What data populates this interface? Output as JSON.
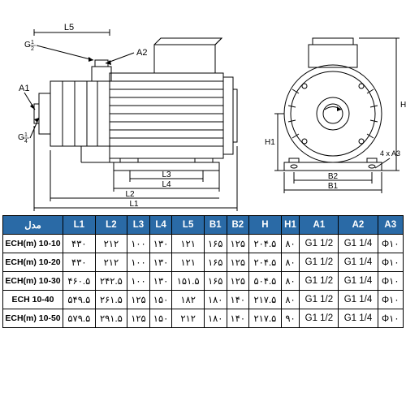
{
  "drawing": {
    "labels": {
      "L1": "L1",
      "L2": "L2",
      "L3": "L3",
      "L4": "L4",
      "L5": "L5",
      "B1": "B1",
      "B2": "B2",
      "H": "H",
      "H1": "H1",
      "A1": "A1",
      "A2": "A2",
      "A3note": "4 x A3",
      "G12": "G",
      "G12frac": "1/2",
      "G14": "G",
      "G14frac": "1/4"
    },
    "stroke": "#000000",
    "fill_none": "none",
    "bg": "#ffffff"
  },
  "table": {
    "header_bg": "#2a6aa6",
    "header_fg": "#ffffff",
    "columns": [
      "مدل",
      "L1",
      "L2",
      "L3",
      "L4",
      "L5",
      "B1",
      "B2",
      "H",
      "H1",
      "A1",
      "A2",
      "A3"
    ],
    "rows": [
      [
        "ECH(m) 10-10",
        "۴۳۰",
        "۲۱۲",
        "۱۰۰",
        "۱۳۰",
        "۱۲۱",
        "۱۶۵",
        "۱۲۵",
        "۲۰۴.۵",
        "۸۰",
        "G1 1/2",
        "G1 1/4",
        "Φ۱۰"
      ],
      [
        "ECH(m) 10-20",
        "۴۳۰",
        "۲۱۲",
        "۱۰۰",
        "۱۳۰",
        "۱۲۱",
        "۱۶۵",
        "۱۲۵",
        "۲۰۴.۵",
        "۸۰",
        "G1 1/2",
        "G1 1/4",
        "Φ۱۰"
      ],
      [
        "ECH(m) 10-30",
        "۴۶۰.۵",
        "۲۴۲.۵",
        "۱۰۰",
        "۱۳۰",
        "۱۵۱.۵",
        "۱۶۵",
        "۱۲۵",
        "۵۰۴.۵",
        "۸۰",
        "G1 1/2",
        "G1 1/4",
        "Φ۱۰"
      ],
      [
        "ECH 10-40",
        "۵۴۹.۵",
        "۲۶۱.۵",
        "۱۲۵",
        "۱۵۰",
        "۱۸۲",
        "۱۸۰",
        "۱۴۰",
        "۲۱۷.۵",
        "۸۰",
        "G1 1/2",
        "G1 1/4",
        "Φ۱۰"
      ],
      [
        "ECH(m) 10-50",
        "۵۷۹.۵",
        "۲۹۱.۵",
        "۱۲۵",
        "۱۵۰",
        "۲۱۲",
        "۱۸۰",
        "۱۴۰",
        "۲۱۷.۵",
        "۹۰",
        "G1  1/2",
        "G1  1/4",
        "Φ۱۰"
      ]
    ],
    "font_size": 11.5,
    "border_color": "#000000"
  }
}
